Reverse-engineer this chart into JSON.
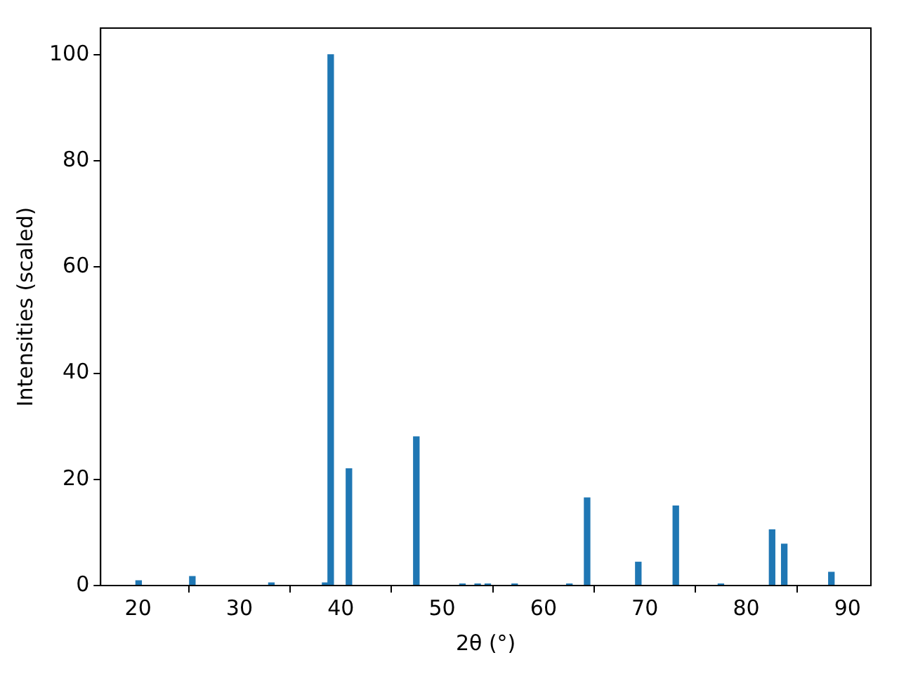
{
  "chart_data": {
    "type": "bar",
    "xlabel": "2θ (°)",
    "ylabel": "Intensities (scaled)",
    "x": [
      20.05,
      25.35,
      33.15,
      38.45,
      39.0,
      40.8,
      47.45,
      52.0,
      53.5,
      54.5,
      57.15,
      62.55,
      64.3,
      69.35,
      73.05,
      77.5,
      82.55,
      83.75,
      88.4
    ],
    "values": [
      0.9,
      1.7,
      0.5,
      0.5,
      100,
      22,
      28,
      0.3,
      0.3,
      0.3,
      0.3,
      0.3,
      16.5,
      4.4,
      15,
      0.3,
      10.5,
      7.8,
      2.5
    ],
    "color": "#1f77b4",
    "xlim": [
      16.3,
      92.3
    ],
    "xticks": [
      20,
      30,
      40,
      50,
      60,
      70,
      80,
      90
    ],
    "ylim": [
      0,
      105
    ],
    "yticks": [
      0,
      20,
      40,
      60,
      80,
      100
    ],
    "grid": false,
    "legend": false
  }
}
